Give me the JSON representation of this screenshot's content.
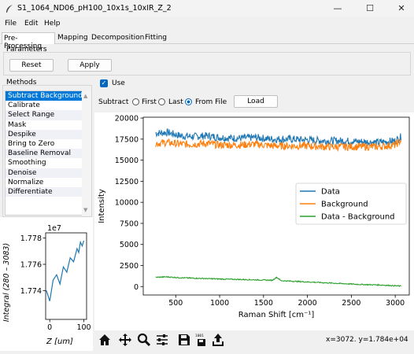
{
  "window": {
    "title": "S1_1064_ND06_pH100_10x1s_10xIR_Z_2",
    "minimize": "—",
    "maximize": "☐",
    "close": "✕"
  },
  "menu": [
    "File",
    "Edit",
    "Help"
  ],
  "tabs": [
    "Pre-Processing",
    "Mapping",
    "Decomposition",
    "Fitting"
  ],
  "parameters": {
    "label": "Parameters",
    "reset": "Reset",
    "apply": "Apply"
  },
  "methods": {
    "label": "Methods",
    "items": [
      "Subtract Background",
      "Calibrate",
      "Select Range",
      "Mask",
      "Despike",
      "Bring to Zero",
      "Baseline Removal",
      "Smoothing",
      "Denoise",
      "Normalize",
      "Differentiate"
    ],
    "selected": 0
  },
  "options": {
    "use_label": "Use",
    "use_checked": true,
    "subtract_label": "Subtract",
    "radio_first": "First",
    "radio_last": "Last",
    "radio_file": "From File",
    "selected_radio": "From File",
    "load_button": "Load"
  },
  "toolbar_icons": [
    "home-icon",
    "move-icon",
    "zoom-icon",
    "configure-icon",
    "save-icon",
    "data-icon",
    "export-icon"
  ],
  "status": {
    "coords": "x=3072. y=1.784e+04"
  },
  "chart_data": [
    {
      "type": "line",
      "xlabel": "Raman Shift [cm⁻¹]",
      "ylabel": "Intensity",
      "xlim": [
        130,
        3160
      ],
      "ylim": [
        -1000,
        20100
      ],
      "xticks": [
        500,
        1000,
        1500,
        2000,
        2500,
        3000
      ],
      "yticks": [
        0,
        2500,
        5000,
        7500,
        10000,
        12500,
        15000,
        17500,
        20000
      ],
      "legend_position": "center-right",
      "series": [
        {
          "name": "Data",
          "color": "#1f77b4",
          "x": [
            270,
            400,
            550,
            700,
            850,
            1000,
            1200,
            1400,
            1600,
            1800,
            2000,
            2200,
            2400,
            2600,
            2800,
            3000,
            3070
          ],
          "y": [
            18200,
            18300,
            17900,
            17800,
            17900,
            17700,
            17600,
            17700,
            17500,
            17500,
            17400,
            17300,
            17300,
            17200,
            17100,
            17300,
            17800
          ]
        },
        {
          "name": "Background",
          "color": "#ff7f0e",
          "x": [
            270,
            400,
            550,
            700,
            850,
            1000,
            1200,
            1400,
            1600,
            1800,
            2000,
            2200,
            2400,
            2600,
            2800,
            3000,
            3070
          ],
          "y": [
            17000,
            17100,
            16900,
            16900,
            17000,
            16800,
            16800,
            16900,
            16700,
            16700,
            16700,
            16600,
            16600,
            16600,
            16600,
            16800,
            17400
          ]
        },
        {
          "name": "Data - Background",
          "color": "#2ca02c",
          "x": [
            270,
            400,
            550,
            700,
            850,
            1000,
            1200,
            1400,
            1600,
            1650,
            1700,
            1800,
            2000,
            2200,
            2400,
            2600,
            2800,
            3000,
            3070
          ],
          "y": [
            1100,
            1150,
            1050,
            1000,
            950,
            900,
            850,
            800,
            750,
            1100,
            700,
            650,
            550,
            450,
            350,
            250,
            200,
            100,
            50
          ]
        }
      ]
    },
    {
      "type": "line",
      "xlabel": "Z [um]",
      "ylabel": "Integral (280 – 3083)",
      "offset_label": "1e7",
      "xlim": [
        -12,
        108
      ],
      "ylim": [
        1.7718,
        1.7784
      ],
      "xticks": [
        0,
        100
      ],
      "yticks": [
        1.774,
        1.776,
        1.778
      ],
      "series": [
        {
          "name": "",
          "color": "#1f77b4",
          "x": [
            -10,
            0,
            10,
            20,
            30,
            40,
            50,
            60,
            70,
            80,
            85,
            90,
            95,
            100
          ],
          "y": [
            1.774,
            1.7732,
            1.7748,
            1.7752,
            1.7745,
            1.7758,
            1.7754,
            1.7765,
            1.7762,
            1.7772,
            1.7769,
            1.7777,
            1.7774,
            1.7778
          ]
        }
      ]
    }
  ]
}
